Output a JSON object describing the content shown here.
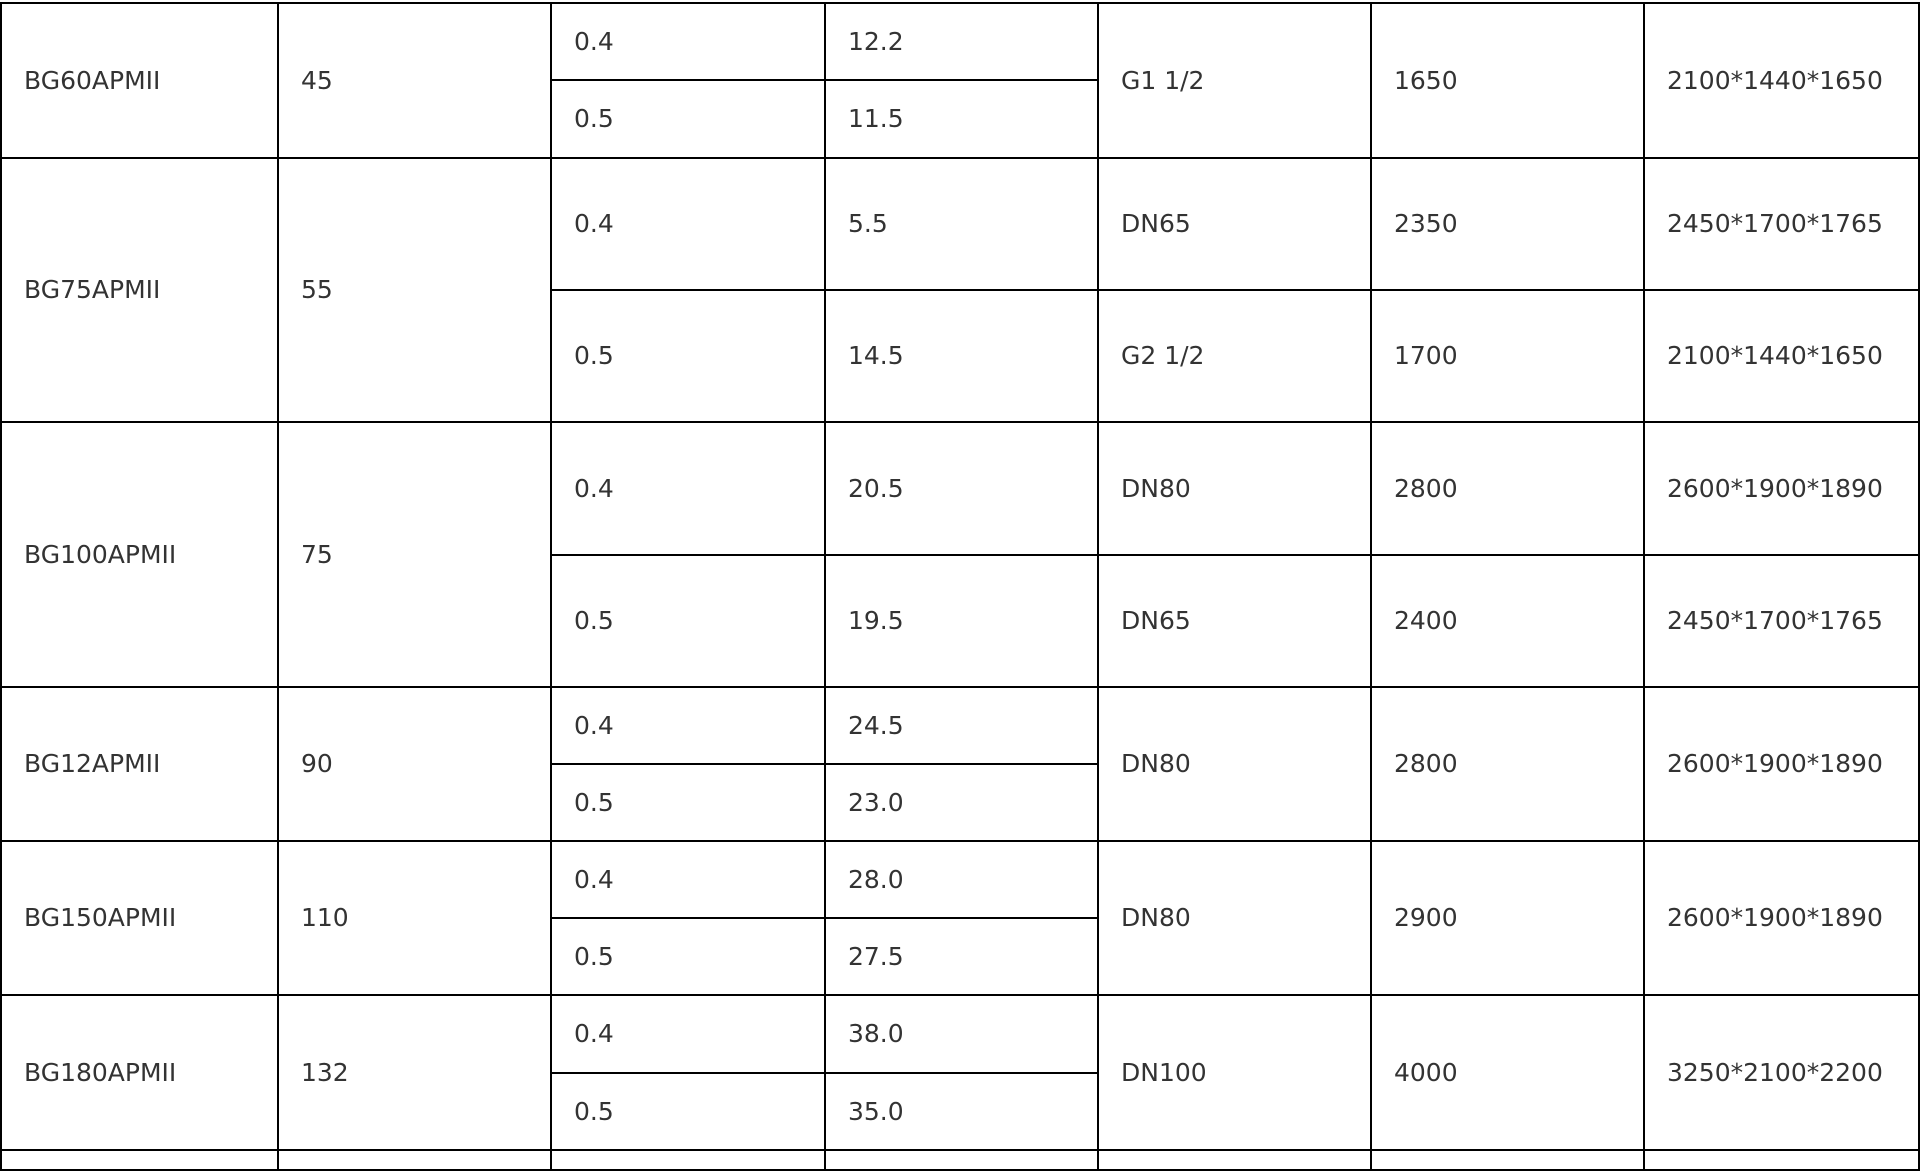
{
  "rows": [
    {
      "model": "BG60APMII",
      "power": "45",
      "sub": [
        {
          "pressure": "0.4",
          "flow": "12.2"
        },
        {
          "pressure": "0.5",
          "flow": "11.5"
        }
      ],
      "pipe": "G1 1/2",
      "weight": "1650",
      "dims": "2100*1440*1650"
    },
    {
      "model": "BG75APMII",
      "power": "55",
      "sub": [
        {
          "pressure": "0.4",
          "flow": "5.5",
          "pipe": "DN65",
          "weight": "2350",
          "dims": "2450*1700*1765"
        },
        {
          "pressure": "0.5",
          "flow": "14.5",
          "pipe": "G2 1/2",
          "weight": "1700",
          "dims": "2100*1440*1650"
        }
      ]
    },
    {
      "model": "BG100APMII",
      "power": "75",
      "sub": [
        {
          "pressure": "0.4",
          "flow": "20.5",
          "pipe": "DN80",
          "weight": "2800",
          "dims": "2600*1900*1890"
        },
        {
          "pressure": "0.5",
          "flow": "19.5",
          "pipe": "DN65",
          "weight": "2400",
          "dims": "2450*1700*1765"
        }
      ]
    },
    {
      "model": "BG12APMII",
      "power": "90",
      "sub": [
        {
          "pressure": "0.4",
          "flow": "24.5"
        },
        {
          "pressure": "0.5",
          "flow": "23.0"
        }
      ],
      "pipe": "DN80",
      "weight": "2800",
      "dims": "2600*1900*1890"
    },
    {
      "model": "BG150APMII",
      "power": "110",
      "sub": [
        {
          "pressure": "0.4",
          "flow": "28.0"
        },
        {
          "pressure": "0.5",
          "flow": "27.5"
        }
      ],
      "pipe": "DN80",
      "weight": "2900",
      "dims": "2600*1900*1890"
    },
    {
      "model": "BG180APMII",
      "power": "132",
      "sub": [
        {
          "pressure": "0.4",
          "flow": "38.0"
        },
        {
          "pressure": "0.5",
          "flow": "35.0"
        }
      ],
      "pipe": "DN100",
      "weight": "4000",
      "dims": "3250*2100*2200"
    }
  ]
}
